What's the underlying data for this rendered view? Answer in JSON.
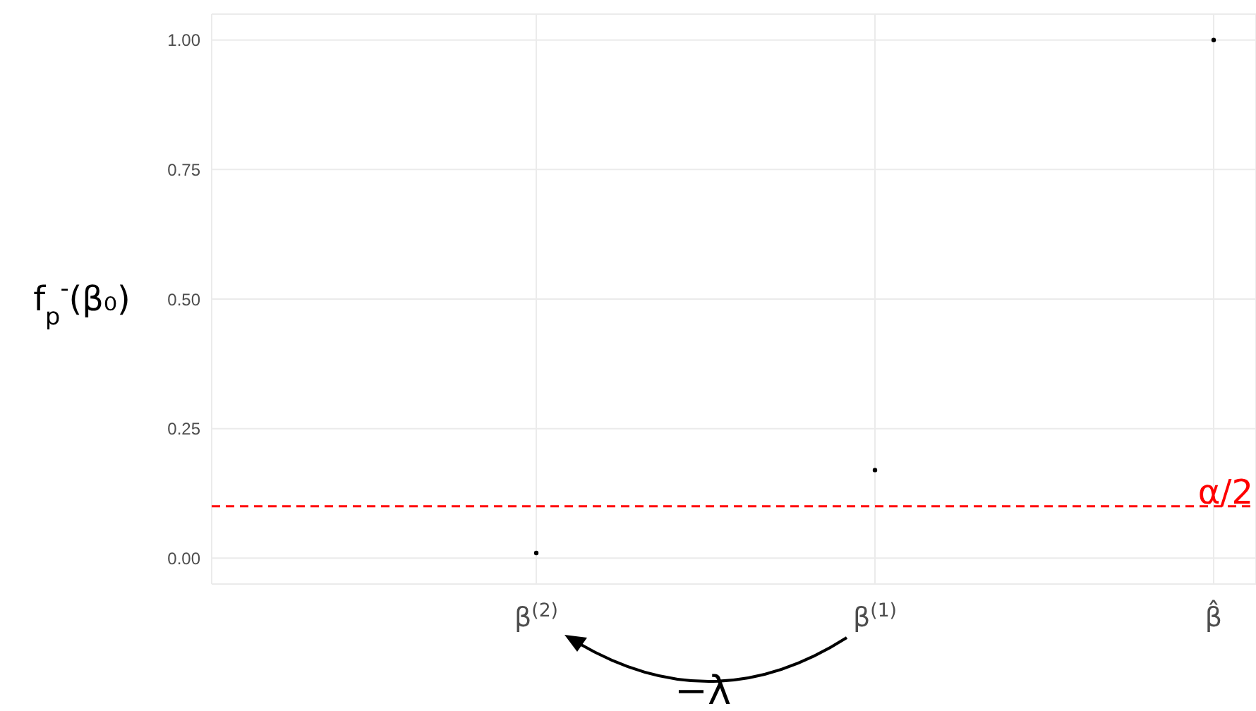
{
  "chart_data": {
    "type": "scatter",
    "ylabel": "f$_{p}$$^{-}$(β₀)",
    "categories": [
      "β$^{(2)}$",
      "β$^{(1)}$",
      "β̂"
    ],
    "series": [
      {
        "color": "#000000",
        "values": [
          0.01,
          0.17,
          1.0
        ]
      }
    ],
    "ylim": [
      -0.05,
      1.05
    ],
    "yticks": [
      {
        "value": 0,
        "label": "0.00"
      },
      0.25,
      {
        "value": 0.5,
        "label": "0.50"
      },
      0.75,
      {
        "value": 1,
        "label": "1.00"
      }
    ],
    "grid": true,
    "marker": "circle",
    "ref_lines": [
      {
        "axis": "y",
        "value": 0.1,
        "label": "α/2",
        "color": "#ff0000",
        "line_style": "dashed"
      }
    ],
    "annotations": [
      "−λ"
    ]
  }
}
